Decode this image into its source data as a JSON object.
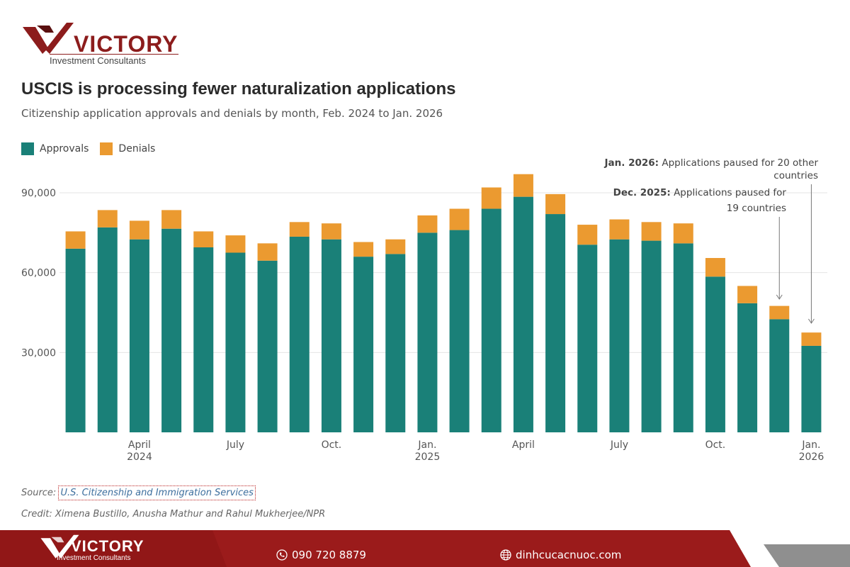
{
  "brand": {
    "name": "VICTORY",
    "tagline": "Investment Consultants",
    "color": "#8c1c1c"
  },
  "title": "USCIS is processing fewer naturalization applications",
  "subtitle": "Citizenship application approvals and denials by month, Feb. 2024 to Jan. 2026",
  "legend": {
    "approvals": "Approvals",
    "denials": "Denials"
  },
  "colors": {
    "approvals": "#1a8078",
    "denials": "#eb9a30",
    "grid": "#e4e4e4",
    "footer": "#9b1b1b"
  },
  "chart_data": {
    "type": "bar",
    "stacked": true,
    "title": "USCIS is processing fewer naturalization applications",
    "ylim": [
      0,
      100000
    ],
    "yticks": [
      30000,
      60000,
      90000
    ],
    "ytick_labels": [
      "30,000",
      "60,000",
      "90,000"
    ],
    "categories": [
      "Feb. 2024",
      "Mar. 2024",
      "Apr. 2024",
      "May 2024",
      "Jun. 2024",
      "Jul. 2024",
      "Aug. 2024",
      "Sep. 2024",
      "Oct. 2024",
      "Nov. 2024",
      "Dec. 2024",
      "Jan. 2025",
      "Feb. 2025",
      "Mar. 2025",
      "Apr. 2025",
      "May 2025",
      "Jun. 2025",
      "Jul. 2025",
      "Aug. 2025",
      "Sep. 2025",
      "Oct. 2025",
      "Nov. 2025",
      "Dec. 2025",
      "Jan. 2026"
    ],
    "x_tick_labels": [
      {
        "index": 2,
        "lines": [
          "April",
          "2024"
        ]
      },
      {
        "index": 5,
        "lines": [
          "July"
        ]
      },
      {
        "index": 8,
        "lines": [
          "Oct."
        ]
      },
      {
        "index": 11,
        "lines": [
          "Jan.",
          "2025"
        ]
      },
      {
        "index": 14,
        "lines": [
          "April"
        ]
      },
      {
        "index": 17,
        "lines": [
          "July"
        ]
      },
      {
        "index": 20,
        "lines": [
          "Oct."
        ]
      },
      {
        "index": 23,
        "lines": [
          "Jan.",
          "2026"
        ]
      }
    ],
    "series": [
      {
        "name": "Approvals",
        "values": [
          69000,
          77000,
          72500,
          76500,
          69500,
          67500,
          64500,
          73500,
          72500,
          66000,
          67000,
          75000,
          76000,
          84000,
          88500,
          82000,
          70500,
          72500,
          72000,
          71000,
          58500,
          48500,
          42500,
          32500
        ]
      },
      {
        "name": "Denials",
        "values": [
          6500,
          6500,
          7000,
          7000,
          6000,
          6500,
          6500,
          5500,
          6000,
          5500,
          5500,
          6500,
          8000,
          8000,
          8500,
          7500,
          7500,
          7500,
          7000,
          7500,
          7000,
          6500,
          5000,
          5000
        ]
      }
    ],
    "annotations": [
      {
        "index": 22,
        "bold": "Dec. 2025:",
        "text": " Applications paused for",
        "text2": "19 countries"
      },
      {
        "index": 23,
        "bold": "Jan. 2026:",
        "text": " Applications paused for 20 other",
        "text2": "countries"
      }
    ]
  },
  "source": {
    "label": "Source:",
    "link_text": "U.S. Citizenship and Immigration Services"
  },
  "credit": "Credit: Ximena Bustillo, Anusha Mathur and Rahul Mukherjee/NPR",
  "footer": {
    "phone": "090 720 8879",
    "website": "dinhcucacnuoc.com",
    "phone_icon": "phone-icon",
    "web_icon": "globe-icon"
  }
}
